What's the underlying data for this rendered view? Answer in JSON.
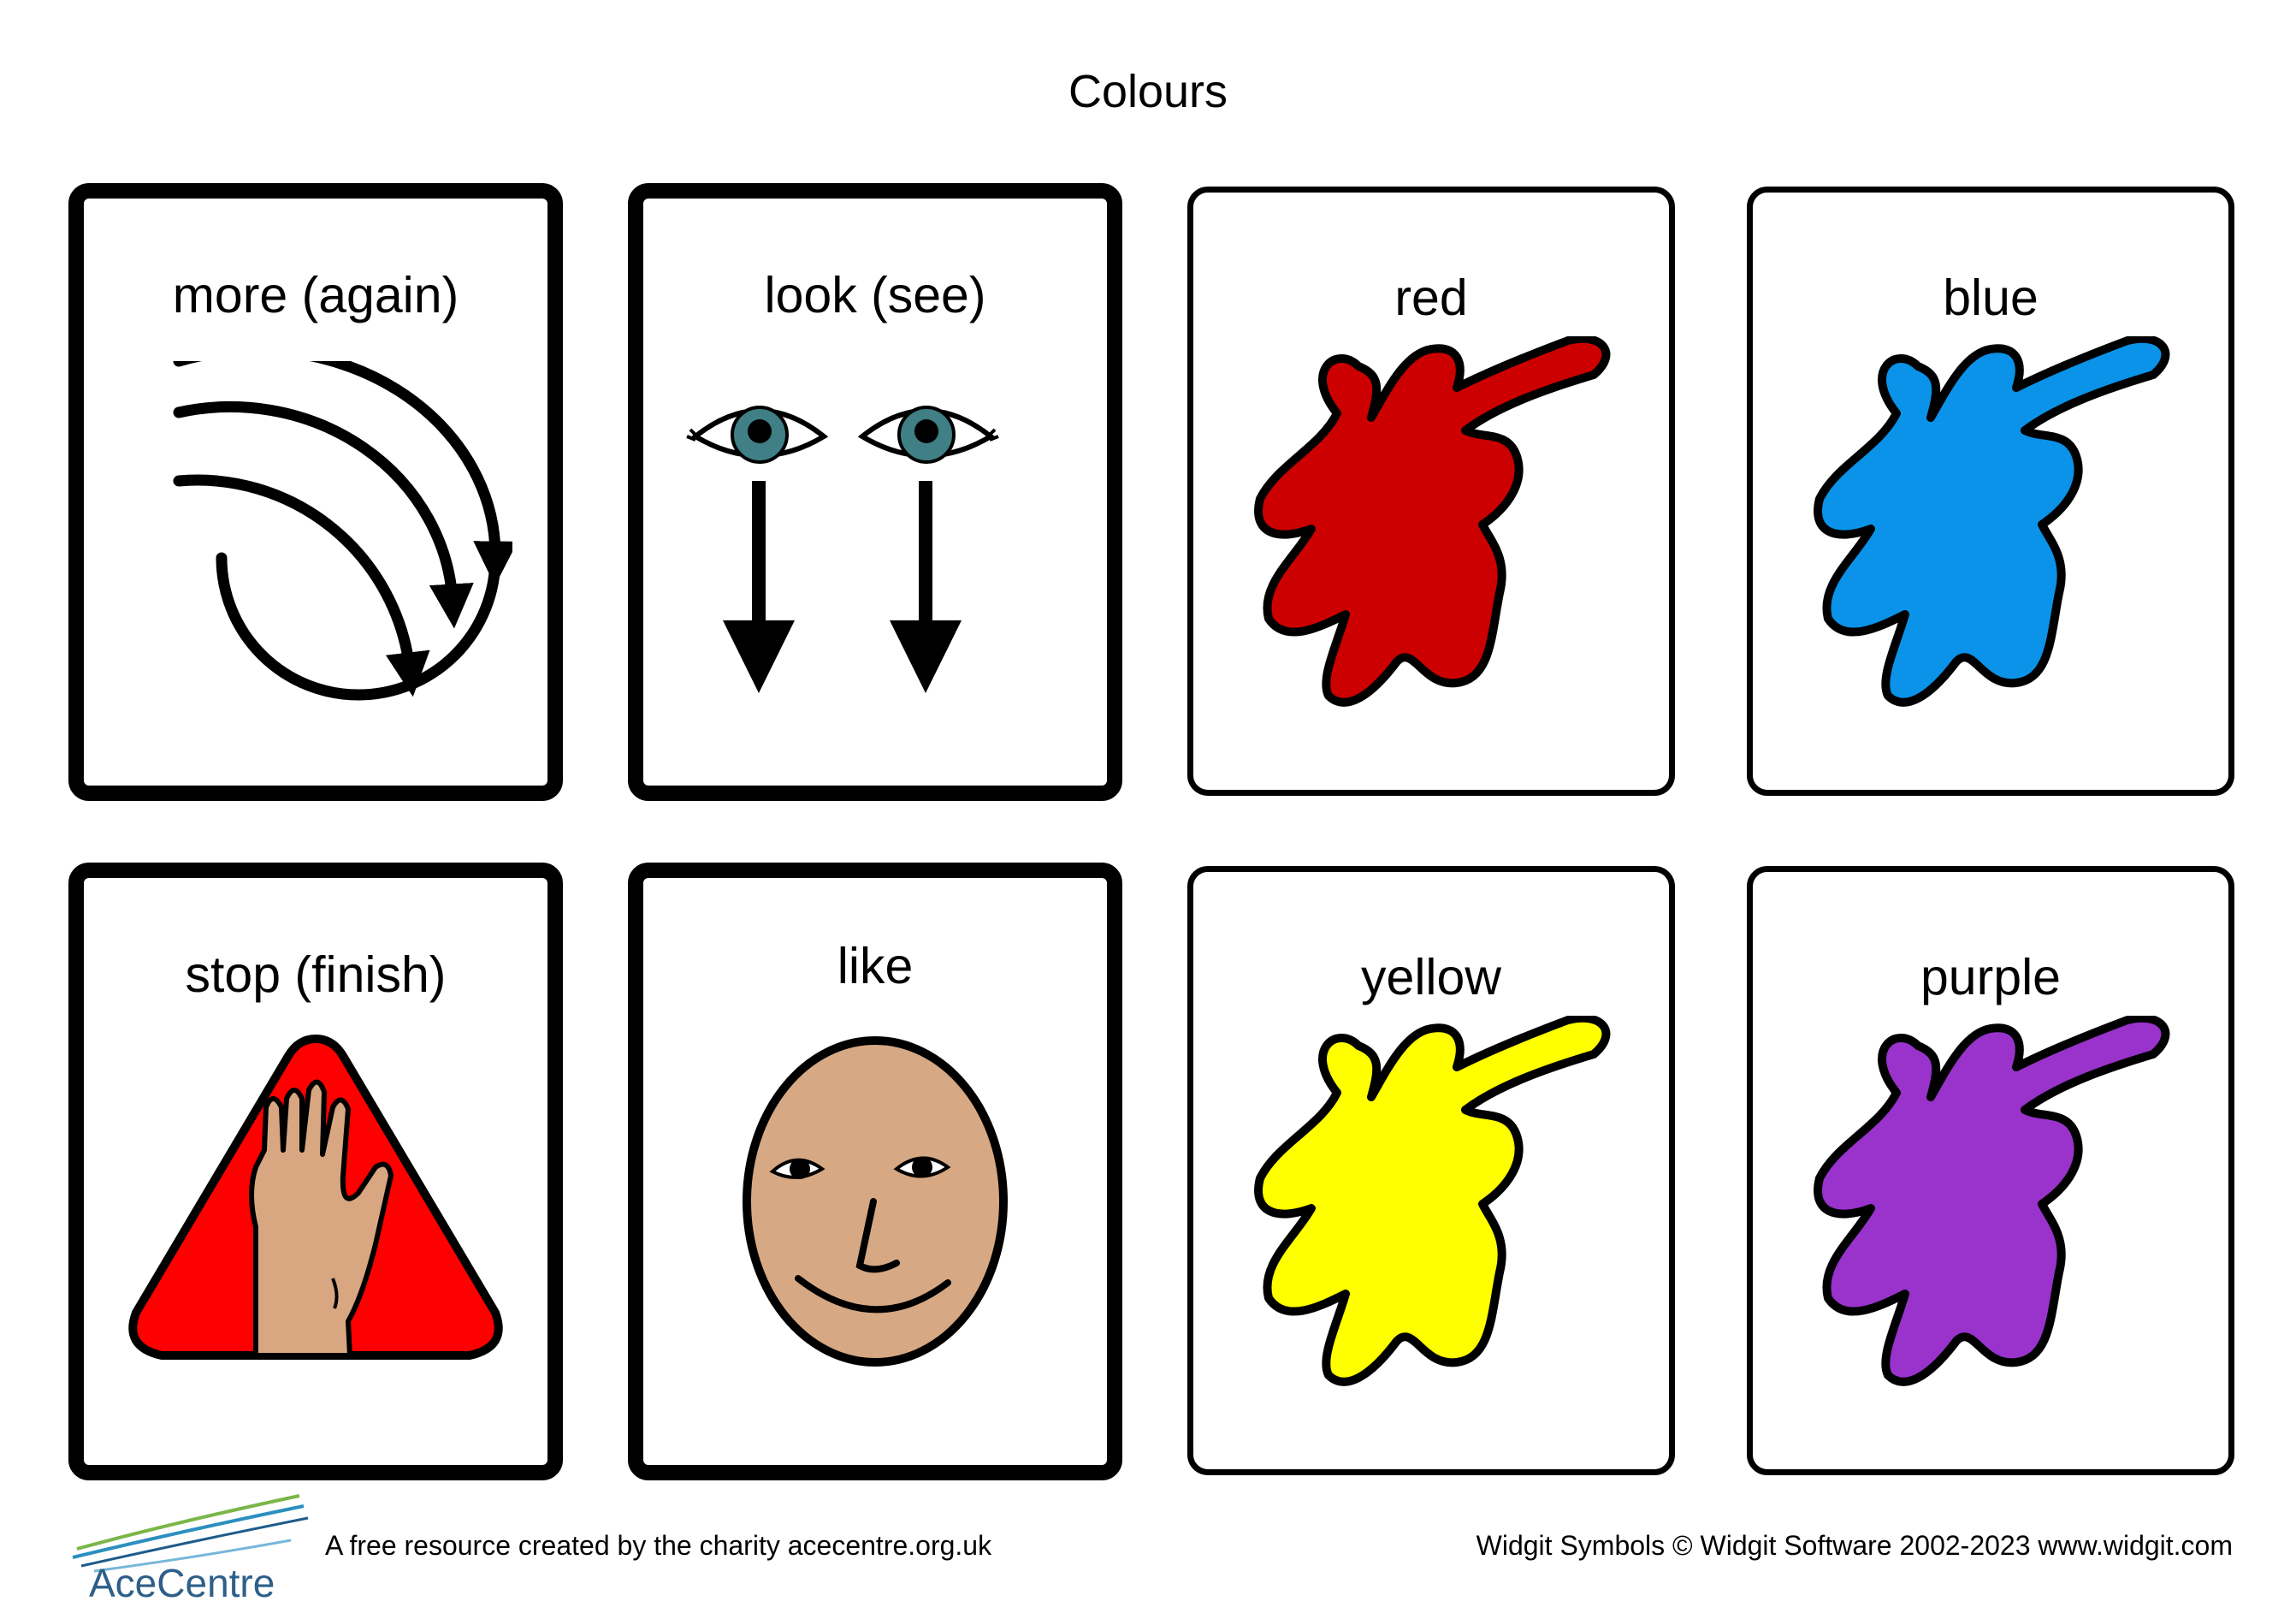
{
  "title": "Colours",
  "cards": [
    {
      "label": "more (again)",
      "icon": "more-again-icon"
    },
    {
      "label": "look (see)",
      "icon": "eyes-looking-icon"
    },
    {
      "label": "red",
      "icon": "paint-splash-icon",
      "color": "#cc0000"
    },
    {
      "label": "blue",
      "icon": "paint-splash-icon",
      "color": "#0a93e8"
    },
    {
      "label": "stop (finish)",
      "icon": "stop-hand-icon"
    },
    {
      "label": "like",
      "icon": "smiling-face-icon"
    },
    {
      "label": "yellow",
      "icon": "paint-splash-icon",
      "color": "#ffff00"
    },
    {
      "label": "purple",
      "icon": "paint-splash-icon",
      "color": "#9933cc"
    }
  ],
  "footer": {
    "resource_note": "A free resource created by the charity acecentre.org.uk",
    "copyright": "Widgit Symbols © Widgit Software 2002-2023 www.widgit.com",
    "logo_text": "AceCentre"
  }
}
